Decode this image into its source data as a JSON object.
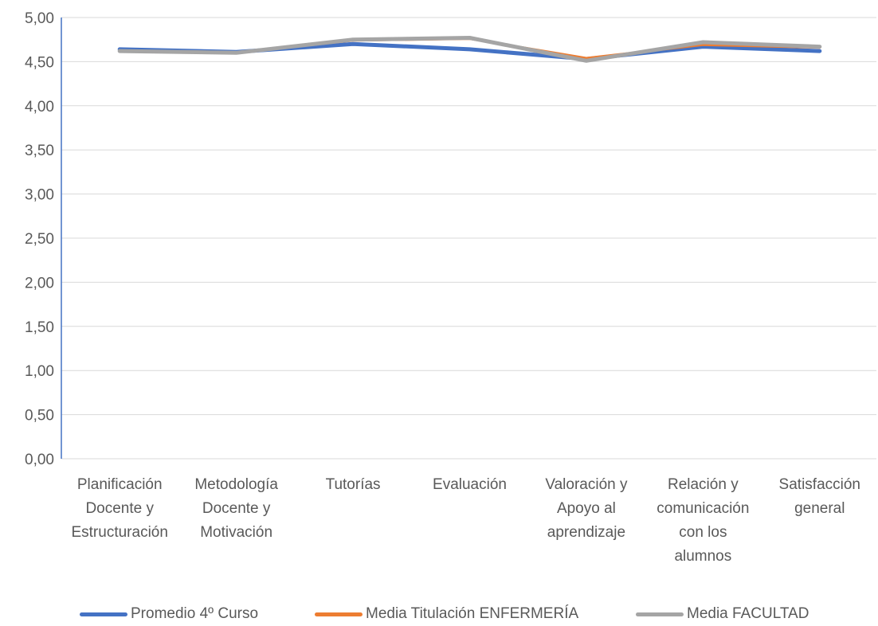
{
  "chart_data": {
    "type": "line",
    "categories": [
      [
        "Planificación",
        "Docente y",
        "Estructuración"
      ],
      [
        "Metodología",
        "Docente y",
        "Motivación"
      ],
      [
        "Tutorías"
      ],
      [
        "Evaluación"
      ],
      [
        "Valoración y",
        "Apoyo al",
        "aprendizaje"
      ],
      [
        "Relación y",
        "comunicación",
        "con los",
        "alumnos"
      ],
      [
        "Satisfacción",
        "general"
      ]
    ],
    "ylim": [
      0,
      5
    ],
    "yticks": [
      "0,00",
      "0,50",
      "1,00",
      "1,50",
      "2,00",
      "2,50",
      "3,00",
      "3,50",
      "4,00",
      "4,50",
      "5,00"
    ],
    "grid": true,
    "legend_position": "bottom",
    "series": [
      {
        "name": "Promedio 4º Curso",
        "color": "#4472C4",
        "values": [
          4.64,
          4.61,
          4.7,
          4.64,
          4.53,
          4.67,
          4.62
        ]
      },
      {
        "name": "Media Titulación ENFERMERÍA",
        "color": "#ED7D31",
        "values": [
          4.62,
          4.6,
          4.74,
          4.76,
          4.54,
          4.69,
          4.66
        ]
      },
      {
        "name": "Media FACULTAD",
        "color": "#A5A5A5",
        "values": [
          4.62,
          4.6,
          4.75,
          4.77,
          4.51,
          4.72,
          4.67
        ]
      }
    ]
  }
}
